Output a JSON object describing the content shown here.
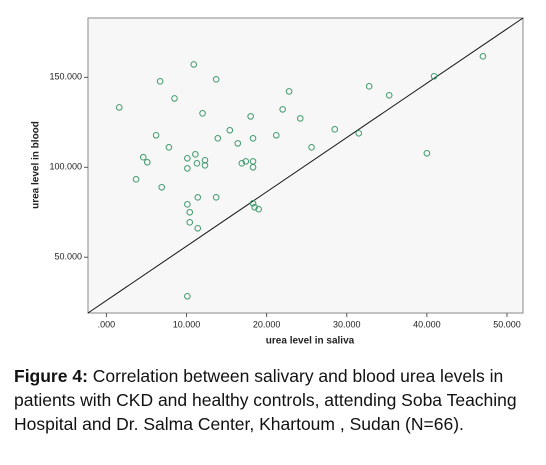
{
  "chart_data": {
    "type": "scatter",
    "xlabel": "urea level in saliva",
    "ylabel": "urea level in blood",
    "color": "#3f9a6c",
    "xlim": [
      -2.3,
      52
    ],
    "ylim": [
      19,
      183
    ],
    "xticks": [
      {
        "value": 0,
        "label": ".000"
      },
      {
        "value": 10,
        "label": "10.000"
      },
      {
        "value": 20,
        "label": "20.000"
      },
      {
        "value": 30,
        "label": "30.000"
      },
      {
        "value": 40,
        "label": "40.000"
      },
      {
        "value": 50,
        "label": "50.000"
      }
    ],
    "yticks": [
      {
        "value": 50,
        "label": "50.000"
      },
      {
        "value": 100,
        "label": "100.000"
      },
      {
        "value": 150,
        "label": "150.000"
      }
    ],
    "x": [
      1.6,
      6.7,
      10.9,
      13.7,
      8.5,
      12.0,
      22.8,
      22.0,
      24.2,
      18.0,
      15.4,
      13.9,
      6.2,
      7.8,
      11.1,
      10.1,
      12.3,
      12.3,
      11.3,
      10.1,
      4.6,
      5.1,
      16.4,
      16.9,
      17.4,
      18.3,
      18.3,
      18.3,
      21.2,
      25.6,
      28.5,
      31.5,
      32.8,
      35.3,
      40.9,
      47.0,
      40.0,
      3.7,
      6.9,
      11.4,
      13.7,
      18.3,
      18.5,
      19.0,
      10.1,
      10.4,
      10.4,
      11.4,
      10.1
    ],
    "values": [
      133.3,
      147.8,
      157.2,
      148.9,
      138.3,
      130,
      142.2,
      132.2,
      127.2,
      128.3,
      120.6,
      116.1,
      117.8,
      111.1,
      107.2,
      105,
      103.9,
      101.1,
      102.2,
      99.4,
      105.6,
      102.8,
      113.3,
      102.2,
      103.3,
      103.3,
      100,
      116.1,
      117.8,
      111.1,
      121.1,
      118.9,
      145,
      140,
      150.6,
      161.7,
      107.8,
      93.3,
      88.9,
      83.3,
      83.3,
      80,
      77.8,
      76.7,
      79.4,
      75,
      69.4,
      66.1,
      28.3
    ]
  },
  "caption": {
    "label": "Figure 4:",
    "text": " Correlation between salivary and blood urea levels in patients with CKD and healthy controls, attending Soba Teaching Hospital and Dr. Salma Center, Khartoum , Sudan (N=66)."
  }
}
